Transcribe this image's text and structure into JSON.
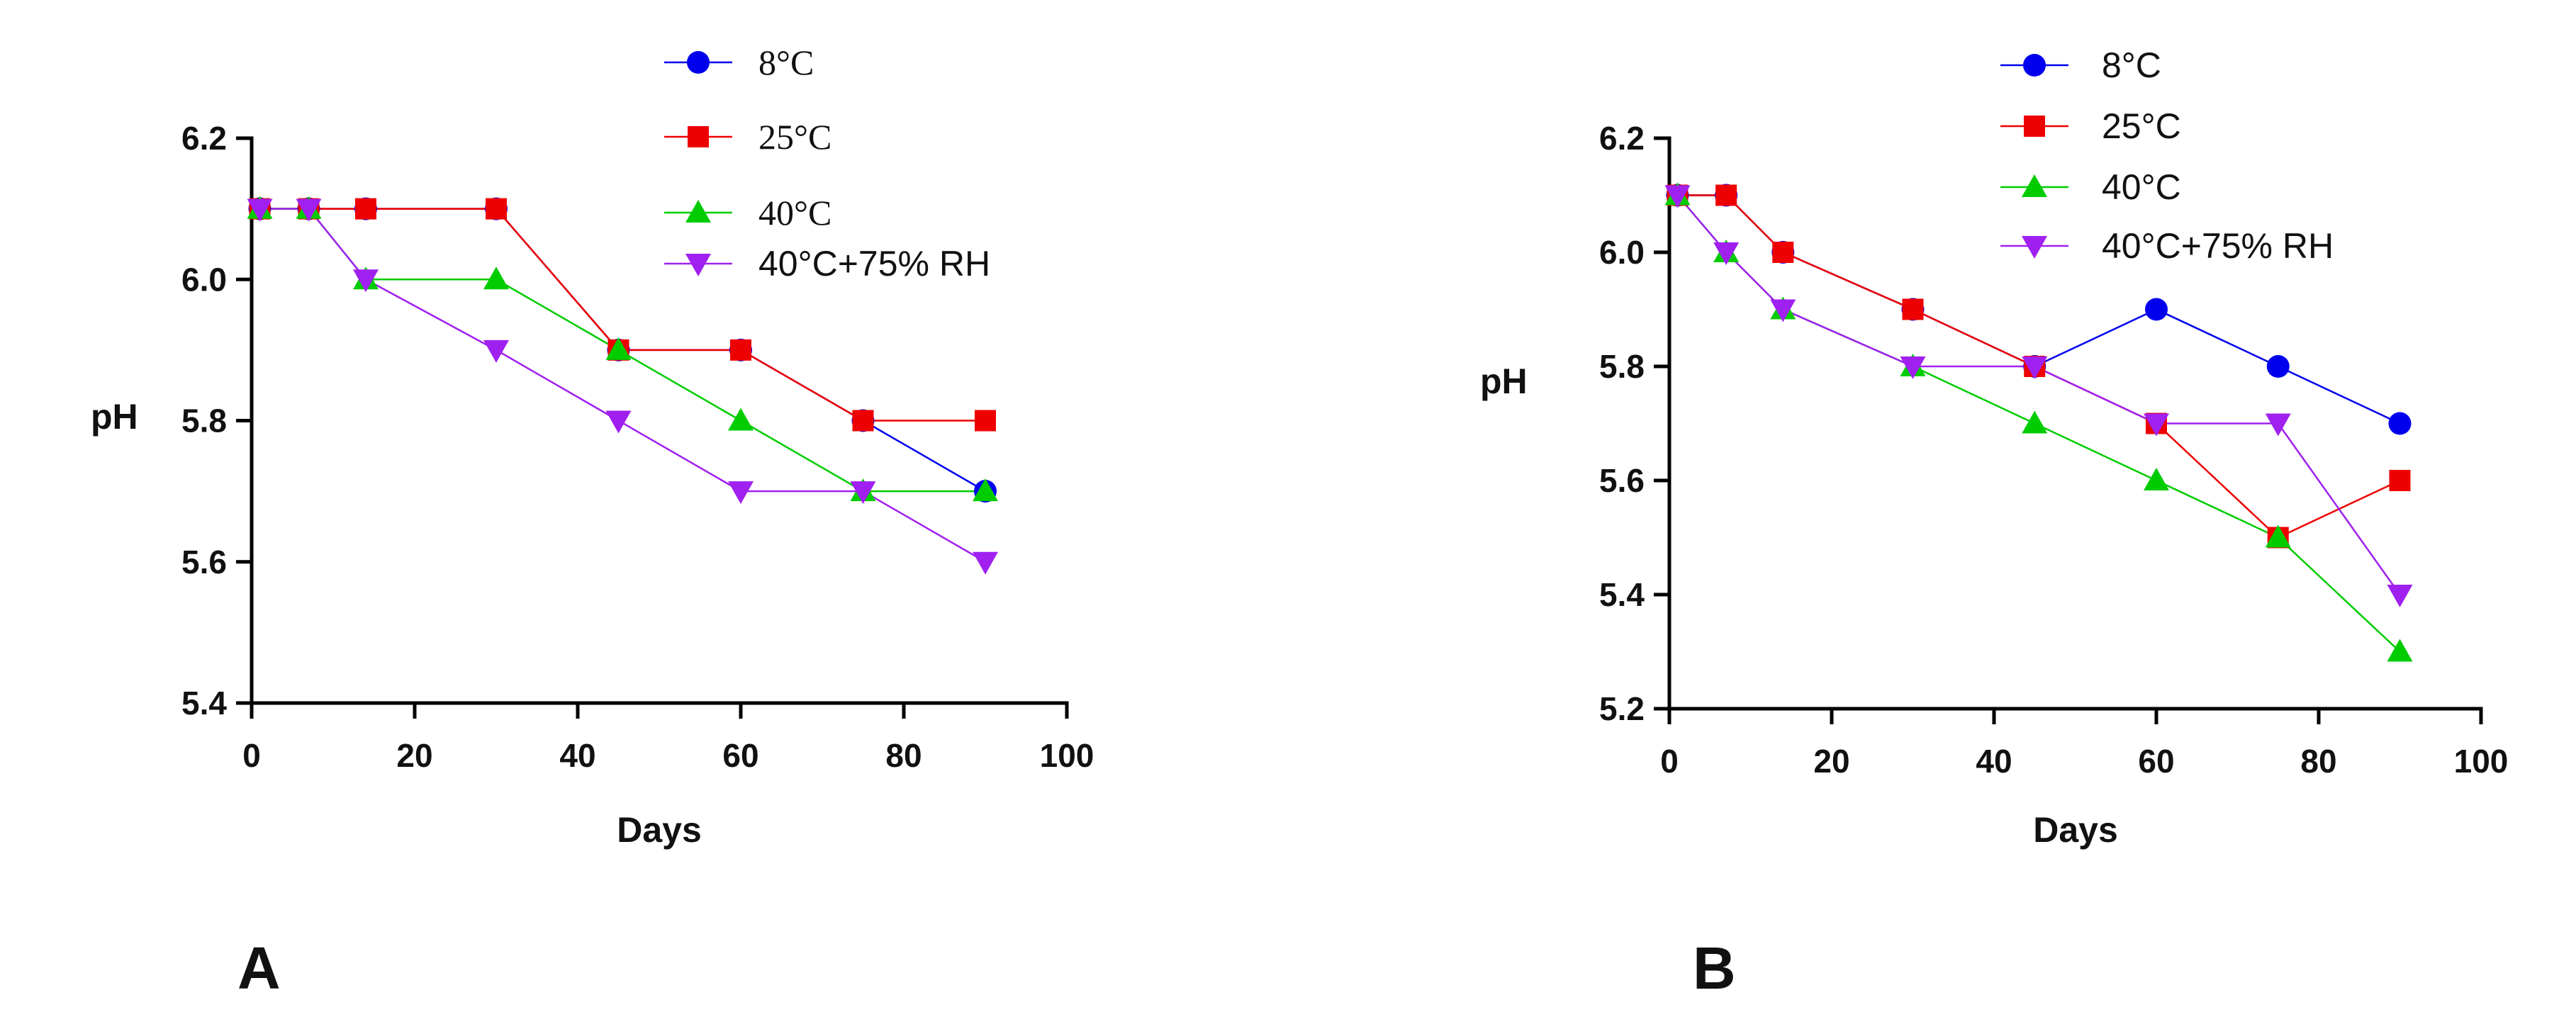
{
  "chart_data": [
    {
      "type": "line",
      "panel_label": "A",
      "xlabel": "Days",
      "ylabel": "pH",
      "xlim": [
        0,
        100
      ],
      "ylim": [
        5.4,
        6.2
      ],
      "xticks": [
        "0",
        "20",
        "40",
        "60",
        "80",
        "100"
      ],
      "yticks": [
        "5.4",
        "5.6",
        "5.8",
        "6.0",
        "6.2"
      ],
      "legend_position": "top-center",
      "series": [
        {
          "name": "8°C",
          "color": "#0000ee",
          "marker": "circle",
          "points": [
            [
              1,
              6.1
            ],
            [
              7,
              6.1
            ],
            [
              14,
              6.1
            ],
            [
              30,
              6.1
            ],
            [
              45,
              5.9
            ],
            [
              60,
              5.9
            ],
            [
              75,
              5.8
            ],
            [
              90,
              5.7
            ]
          ]
        },
        {
          "name": "25°C",
          "color": "#ee0000",
          "marker": "square",
          "points": [
            [
              1,
              6.1
            ],
            [
              7,
              6.1
            ],
            [
              14,
              6.1
            ],
            [
              30,
              6.1
            ],
            [
              45,
              5.9
            ],
            [
              60,
              5.9
            ],
            [
              75,
              5.8
            ],
            [
              90,
              5.8
            ]
          ]
        },
        {
          "name": "40°C",
          "color": "#00cc00",
          "marker": "triangle-up",
          "points": [
            [
              1,
              6.1
            ],
            [
              7,
              6.1
            ],
            [
              14,
              6.0
            ],
            [
              30,
              6.0
            ],
            [
              45,
              5.9
            ],
            [
              60,
              5.8
            ],
            [
              75,
              5.7
            ],
            [
              90,
              5.7
            ]
          ]
        },
        {
          "name": "40°C+75% RH",
          "color": "#a020f0",
          "marker": "triangle-down",
          "points": [
            [
              1,
              6.1
            ],
            [
              7,
              6.1
            ],
            [
              14,
              6.0
            ],
            [
              30,
              5.9
            ],
            [
              45,
              5.8
            ],
            [
              60,
              5.7
            ],
            [
              75,
              5.7
            ],
            [
              90,
              5.6
            ]
          ]
        }
      ]
    },
    {
      "type": "line",
      "panel_label": "B",
      "xlabel": "Days",
      "ylabel": "pH",
      "xlim": [
        0,
        100
      ],
      "ylim": [
        5.2,
        6.2
      ],
      "xticks": [
        "0",
        "20",
        "40",
        "60",
        "80",
        "100"
      ],
      "yticks": [
        "5.2",
        "5.4",
        "5.6",
        "5.8",
        "6.0",
        "6.2"
      ],
      "legend_position": "top-center",
      "series": [
        {
          "name": "8°C",
          "color": "#0000ee",
          "marker": "circle",
          "points": [
            [
              1,
              6.1
            ],
            [
              7,
              6.1
            ],
            [
              14,
              6.0
            ],
            [
              30,
              5.9
            ],
            [
              45,
              5.8
            ],
            [
              60,
              5.9
            ],
            [
              75,
              5.8
            ],
            [
              90,
              5.7
            ]
          ]
        },
        {
          "name": "25°C",
          "color": "#ee0000",
          "marker": "square",
          "points": [
            [
              1,
              6.1
            ],
            [
              7,
              6.1
            ],
            [
              14,
              6.0
            ],
            [
              30,
              5.9
            ],
            [
              45,
              5.8
            ],
            [
              60,
              5.7
            ],
            [
              75,
              5.5
            ],
            [
              90,
              5.6
            ]
          ]
        },
        {
          "name": "40°C",
          "color": "#00cc00",
          "marker": "triangle-up",
          "points": [
            [
              1,
              6.1
            ],
            [
              7,
              6.0
            ],
            [
              14,
              5.9
            ],
            [
              30,
              5.8
            ],
            [
              45,
              5.7
            ],
            [
              60,
              5.6
            ],
            [
              75,
              5.5
            ],
            [
              90,
              5.3
            ]
          ]
        },
        {
          "name": "40°C+75% RH",
          "color": "#a020f0",
          "marker": "triangle-down",
          "points": [
            [
              1,
              6.1
            ],
            [
              7,
              6.0
            ],
            [
              14,
              5.9
            ],
            [
              30,
              5.8
            ],
            [
              45,
              5.8
            ],
            [
              60,
              5.7
            ],
            [
              75,
              5.7
            ],
            [
              90,
              5.4
            ]
          ]
        }
      ]
    }
  ]
}
